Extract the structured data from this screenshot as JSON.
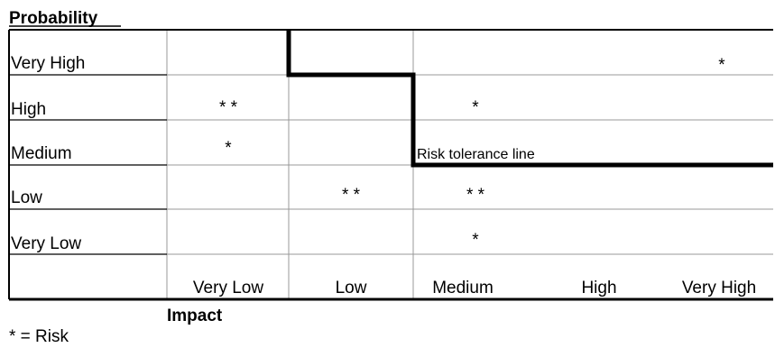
{
  "chart_data": {
    "type": "table",
    "title": "",
    "ylabel": "Probability",
    "xlabel": "Impact",
    "rows": [
      "Very High",
      "High",
      "Medium",
      "Low",
      "Very Low"
    ],
    "columns": [
      "Very Low",
      "Low",
      "Medium",
      "High",
      "Very High"
    ],
    "risks": [
      {
        "probability": "Very High",
        "impact": "Very High",
        "count": 1
      },
      {
        "probability": "High",
        "impact": "Very Low",
        "count": 2
      },
      {
        "probability": "High",
        "impact": "Medium",
        "count": 1
      },
      {
        "probability": "Medium",
        "impact": "Very Low",
        "count": 1
      },
      {
        "probability": "Low",
        "impact": "Low",
        "count": 2
      },
      {
        "probability": "Low",
        "impact": "Medium",
        "count": 2
      },
      {
        "probability": "Very Low",
        "impact": "Medium",
        "count": 1
      }
    ],
    "risk_symbol": "*",
    "tolerance_line": {
      "label": "Risk tolerance line",
      "steps": [
        {
          "impact_boundary": "Very Low|Low",
          "from_row": "top",
          "to_row": "Very High|High"
        },
        {
          "impact_boundary": "Low|Medium",
          "from_row": "Very High|High",
          "to_row": "Medium|Low"
        },
        {
          "impact_boundary": "right edge",
          "from_row": "Medium|Low",
          "to_row": "Medium|Low"
        }
      ]
    }
  },
  "legend": {
    "note": "* = Risk"
  },
  "colors": {
    "grid": "#000000",
    "grid_light": "#999999",
    "tolerance_line": "#000000"
  }
}
